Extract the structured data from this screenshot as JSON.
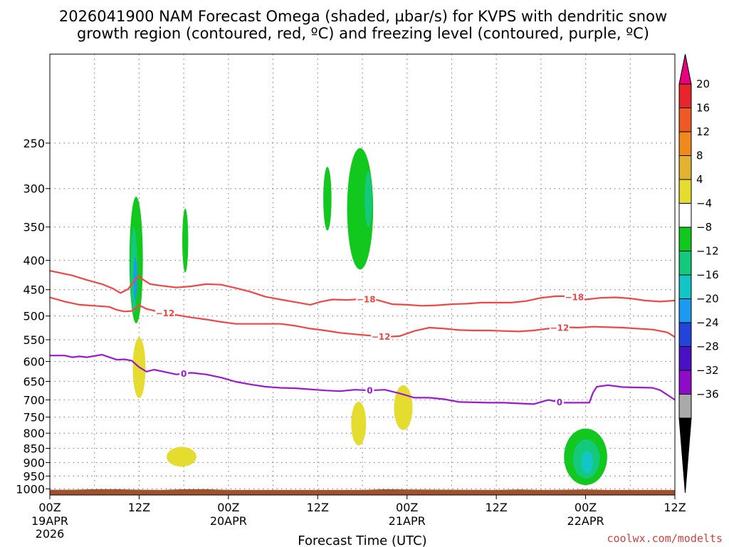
{
  "title": {
    "line1": "2026041900 NAM Forecast Omega (shaded, µbar/s) for KVPS with dendritic snow",
    "line2": "growth region (contoured, red, ºC) and freezing level (contoured, purple, ºC)"
  },
  "credit": "coolwx.com/modelts",
  "colors": {
    "dendritic": "#f04646",
    "freezing": "#9a1ad0",
    "terrain": "#a0522d",
    "grid": "#888888"
  },
  "chart_data": {
    "type": "heatmap",
    "xlabel": "Forecast Time (UTC)",
    "xlim": [
      0,
      84
    ],
    "ylim": [
      1025,
      175
    ],
    "y_scale": "log-pressure",
    "grid": true,
    "x_ticks": [
      {
        "h": 0,
        "l1": "00Z",
        "l2": "19APR",
        "l3": "2026"
      },
      {
        "h": 12,
        "l1": "12Z",
        "l2": "",
        "l3": ""
      },
      {
        "h": 24,
        "l1": "00Z",
        "l2": "20APR",
        "l3": ""
      },
      {
        "h": 36,
        "l1": "12Z",
        "l2": "",
        "l3": ""
      },
      {
        "h": 48,
        "l1": "00Z",
        "l2": "21APR",
        "l3": ""
      },
      {
        "h": 60,
        "l1": "12Z",
        "l2": "",
        "l3": ""
      },
      {
        "h": 72,
        "l1": "00Z",
        "l2": "22APR",
        "l3": ""
      },
      {
        "h": 84,
        "l1": "12Z",
        "l2": "",
        "l3": ""
      }
    ],
    "y_ticks": [
      {
        "p": 250,
        "label": "250"
      },
      {
        "p": 300,
        "label": "300"
      },
      {
        "p": 350,
        "label": "350"
      },
      {
        "p": 400,
        "label": "400"
      },
      {
        "p": 450,
        "label": "450"
      },
      {
        "p": 500,
        "label": "500"
      },
      {
        "p": 550,
        "label": "550"
      },
      {
        "p": 600,
        "label": "600"
      },
      {
        "p": 650,
        "label": "650"
      },
      {
        "p": 700,
        "label": "700"
      },
      {
        "p": 750,
        "label": "750"
      },
      {
        "p": 800,
        "label": "800"
      },
      {
        "p": 850,
        "label": "850"
      },
      {
        "p": 900,
        "label": "900"
      },
      {
        "p": 950,
        "label": "950"
      },
      {
        "p": 1000,
        "label": "1000"
      }
    ],
    "colorbar": {
      "top_color": "#e6007e",
      "bottom_color": "#000000",
      "bins": [
        {
          "color": "#e8252d",
          "label": "20"
        },
        {
          "color": "#ee5a24",
          "label": "16"
        },
        {
          "color": "#ef8a1f",
          "label": "12"
        },
        {
          "color": "#e3b22e",
          "label": "8"
        },
        {
          "color": "#e5dc30",
          "label": "4"
        },
        {
          "color": "#ffffff",
          "label": "−4"
        },
        {
          "color": "#12c81e",
          "label": "−8"
        },
        {
          "color": "#14c87c",
          "label": "−12"
        },
        {
          "color": "#12c6c6",
          "label": "−16"
        },
        {
          "color": "#1a9af0",
          "label": "−20"
        },
        {
          "color": "#2244d8",
          "label": "−24"
        },
        {
          "color": "#4a10c4",
          "label": "−28"
        },
        {
          "color": "#8e0cc8",
          "label": "−32"
        },
        {
          "color": "#aaaaaa",
          "label": "−36"
        }
      ]
    },
    "series": [
      {
        "color": "#f04646",
        "points": [
          [
            0,
            417
          ],
          [
            3,
            425
          ],
          [
            5,
            433
          ],
          [
            7,
            440
          ],
          [
            8.5,
            448
          ],
          [
            9.5,
            456
          ],
          [
            10.5,
            449
          ],
          [
            11.5,
            432
          ],
          [
            12,
            426
          ],
          [
            12.5,
            432
          ],
          [
            13.5,
            440
          ],
          [
            15,
            443
          ],
          [
            17,
            446
          ],
          [
            19,
            444
          ],
          [
            21,
            440
          ],
          [
            23,
            441
          ],
          [
            25,
            447
          ],
          [
            27,
            454
          ],
          [
            29,
            463
          ],
          [
            31,
            468
          ],
          [
            33,
            473
          ],
          [
            35,
            478
          ],
          [
            36.5,
            472
          ],
          [
            38,
            468
          ],
          [
            40,
            469
          ],
          [
            42,
            467
          ],
          [
            44,
            469
          ],
          [
            46,
            477
          ],
          [
            48,
            478
          ],
          [
            50,
            480
          ],
          [
            52,
            479
          ],
          [
            54,
            477
          ],
          [
            56,
            476
          ],
          [
            58,
            474
          ],
          [
            60,
            474
          ],
          [
            62,
            474
          ],
          [
            64,
            471
          ],
          [
            66,
            465
          ],
          [
            68,
            462
          ],
          [
            70,
            462
          ],
          [
            72,
            468
          ],
          [
            74,
            465
          ],
          [
            76,
            464
          ],
          [
            78,
            466
          ],
          [
            80,
            470
          ],
          [
            82,
            472
          ],
          [
            84,
            470
          ]
        ],
        "labels": [
          {
            "x": 42.5,
            "y": 470,
            "text": "−18"
          },
          {
            "x": 70.5,
            "y": 462,
            "text": "−18"
          }
        ]
      },
      {
        "color": "#f04646",
        "points": [
          [
            0,
            464
          ],
          [
            2,
            472
          ],
          [
            4,
            478
          ],
          [
            6,
            480
          ],
          [
            8,
            482
          ],
          [
            9,
            488
          ],
          [
            10,
            491
          ],
          [
            11,
            490
          ],
          [
            12,
            479
          ],
          [
            13,
            486
          ],
          [
            15,
            493
          ],
          [
            17,
            498
          ],
          [
            19,
            503
          ],
          [
            21,
            507
          ],
          [
            23,
            512
          ],
          [
            25,
            516
          ],
          [
            27,
            516
          ],
          [
            29,
            516
          ],
          [
            31,
            516
          ],
          [
            33,
            520
          ],
          [
            35,
            526
          ],
          [
            37,
            530
          ],
          [
            39,
            535
          ],
          [
            41,
            538
          ],
          [
            43,
            541
          ],
          [
            45,
            544
          ],
          [
            47,
            542
          ],
          [
            49,
            531
          ],
          [
            51,
            524
          ],
          [
            53,
            526
          ],
          [
            55,
            529
          ],
          [
            57,
            530
          ],
          [
            59,
            530
          ],
          [
            61,
            531
          ],
          [
            63,
            532
          ],
          [
            65,
            530
          ],
          [
            67,
            526
          ],
          [
            69,
            523
          ],
          [
            71,
            524
          ],
          [
            73,
            522
          ],
          [
            75,
            523
          ],
          [
            77,
            524
          ],
          [
            79,
            526
          ],
          [
            81,
            528
          ],
          [
            83,
            534
          ],
          [
            84,
            544
          ]
        ],
        "labels": [
          {
            "x": 15.5,
            "y": 494,
            "text": "−12"
          },
          {
            "x": 44.5,
            "y": 543,
            "text": "−12"
          },
          {
            "x": 68.5,
            "y": 524,
            "text": "−12"
          }
        ]
      },
      {
        "color": "#9a1ad0",
        "points": [
          [
            0,
            586
          ],
          [
            2,
            586
          ],
          [
            3,
            590
          ],
          [
            4,
            588
          ],
          [
            5,
            590
          ],
          [
            7,
            584
          ],
          [
            8,
            590
          ],
          [
            9,
            596
          ],
          [
            10,
            595
          ],
          [
            11,
            598
          ],
          [
            12,
            614
          ],
          [
            13,
            625
          ],
          [
            14,
            620
          ],
          [
            15,
            624
          ],
          [
            17,
            632
          ],
          [
            19,
            628
          ],
          [
            21,
            632
          ],
          [
            23,
            640
          ],
          [
            25,
            651
          ],
          [
            27,
            658
          ],
          [
            29,
            664
          ],
          [
            31,
            667
          ],
          [
            33,
            668
          ],
          [
            35,
            671
          ],
          [
            37,
            674
          ],
          [
            39,
            676
          ],
          [
            41,
            672
          ],
          [
            43,
            674
          ],
          [
            45,
            672
          ],
          [
            47,
            682
          ],
          [
            49,
            694
          ],
          [
            51,
            694
          ],
          [
            53,
            698
          ],
          [
            55,
            706
          ],
          [
            57,
            707
          ],
          [
            59,
            708
          ],
          [
            61,
            708
          ],
          [
            63,
            710
          ],
          [
            65,
            712
          ],
          [
            67,
            700
          ],
          [
            69,
            708
          ],
          [
            71,
            708
          ],
          [
            72.5,
            708
          ],
          [
            73,
            680
          ],
          [
            73.5,
            664
          ],
          [
            75,
            660
          ],
          [
            77,
            665
          ],
          [
            79,
            666
          ],
          [
            81,
            667
          ],
          [
            82,
            673
          ],
          [
            83,
            686
          ],
          [
            84,
            700
          ]
        ],
        "labels": [
          {
            "x": 18,
            "y": 630,
            "text": "0"
          },
          {
            "x": 43,
            "y": 673,
            "text": "0"
          },
          {
            "x": 68.5,
            "y": 708,
            "text": "0"
          }
        ]
      }
    ],
    "shaded": [
      {
        "cx": 11.6,
        "w": 1.8,
        "p_top": 310,
        "p_bot": 515,
        "color": "#12c81e",
        "value": "-8"
      },
      {
        "cx": 11.3,
        "w": 0.9,
        "p_top": 350,
        "p_bot": 495,
        "color": "#14c87c",
        "value": "-12"
      },
      {
        "cx": 11.5,
        "w": 0.5,
        "p_top": 395,
        "p_bot": 470,
        "color": "#1a9af0",
        "value": "-16"
      },
      {
        "cx": 18.2,
        "w": 0.8,
        "p_top": 325,
        "p_bot": 420,
        "color": "#12c81e",
        "value": "-8"
      },
      {
        "cx": 37.3,
        "w": 1.1,
        "p_top": 275,
        "p_bot": 355,
        "color": "#12c81e",
        "value": "-8"
      },
      {
        "cx": 41.7,
        "w": 3.5,
        "p_top": 255,
        "p_bot": 415,
        "color": "#12c81e",
        "value": "-8"
      },
      {
        "cx": 42.8,
        "w": 1.0,
        "p_top": 280,
        "p_bot": 350,
        "color": "#14c87c",
        "value": "-12"
      },
      {
        "cx": 12.0,
        "w": 1.7,
        "p_top": 545,
        "p_bot": 695,
        "color": "#e5dc30",
        "value": "4"
      },
      {
        "cx": 17.7,
        "w": 4.0,
        "p_top": 845,
        "p_bot": 915,
        "color": "#e5dc30",
        "value": "4"
      },
      {
        "cx": 41.5,
        "w": 2.0,
        "p_top": 705,
        "p_bot": 840,
        "color": "#e5dc30",
        "value": "4"
      },
      {
        "cx": 47.5,
        "w": 2.5,
        "p_top": 660,
        "p_bot": 790,
        "color": "#e5dc30",
        "value": "4"
      },
      {
        "cx": 72.0,
        "w": 5.8,
        "p_top": 785,
        "p_bot": 985,
        "color": "#12c81e",
        "value": "-8"
      },
      {
        "cx": 72.1,
        "w": 3.6,
        "p_top": 820,
        "p_bot": 960,
        "color": "#14c87c",
        "value": "-12"
      },
      {
        "cx": 72.2,
        "w": 1.6,
        "p_top": 860,
        "p_bot": 940,
        "color": "#12c6c6",
        "value": "-16"
      }
    ],
    "terrain": [
      [
        0,
        1005
      ],
      [
        3,
        1005
      ],
      [
        6,
        1003
      ],
      [
        9,
        1003
      ],
      [
        12,
        1005
      ],
      [
        15,
        1006
      ],
      [
        18,
        1003
      ],
      [
        21,
        1003
      ],
      [
        24,
        1006
      ],
      [
        30,
        1006
      ],
      [
        36,
        1006
      ],
      [
        42,
        1006
      ],
      [
        45,
        1003
      ],
      [
        48,
        1004
      ],
      [
        54,
        1005
      ],
      [
        60,
        1006
      ],
      [
        63,
        1004
      ],
      [
        66,
        1006
      ],
      [
        69,
        1005
      ],
      [
        72,
        1004
      ],
      [
        75,
        1006
      ],
      [
        78,
        1006
      ],
      [
        84,
        1006
      ]
    ]
  }
}
